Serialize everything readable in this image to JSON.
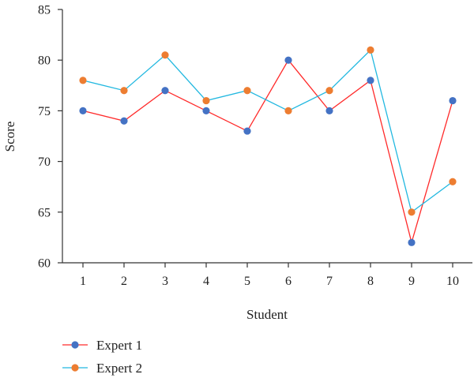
{
  "chart_data": {
    "type": "line",
    "x": [
      1,
      2,
      3,
      4,
      5,
      6,
      7,
      8,
      9,
      10
    ],
    "xticks": [
      "1",
      "2",
      "3",
      "4",
      "5",
      "6",
      "7",
      "8",
      "9",
      "10"
    ],
    "yticks": [
      "60",
      "65",
      "70",
      "75",
      "80",
      "85"
    ],
    "ylim": [
      60,
      85
    ],
    "xlabel": "Student",
    "ylabel": "Score",
    "grid": false,
    "legend_position": "bottom-left",
    "series": [
      {
        "name": "Expert 1",
        "values": [
          75,
          74,
          77,
          75,
          73,
          80,
          75,
          78,
          62,
          76
        ],
        "line_color": "#ff2a2a",
        "marker_color": "#4472c4"
      },
      {
        "name": "Expert 2",
        "values": [
          78,
          77,
          80.5,
          76,
          77,
          75,
          77,
          81,
          65,
          68
        ],
        "line_color": "#22b8e0",
        "marker_color": "#ed7d31"
      }
    ]
  }
}
